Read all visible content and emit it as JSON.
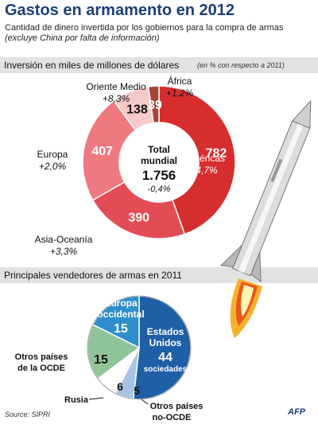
{
  "header": {
    "title": "Gastos en armamento en 2012",
    "subtitle_main": "Cantidad de dinero invertida por los gobiernos para la compra de armas",
    "subtitle_note": "(excluye China por falta de información)"
  },
  "section1": {
    "label": "Inversión en miles de millones de dólares",
    "note": "(en % con respecto a 2011)"
  },
  "section2": {
    "label": "Principales vendedores de armas en 2011"
  },
  "footer": {
    "source": "Source: SIPRI",
    "logo": "AFP"
  },
  "chart_data": [
    {
      "type": "pie",
      "variant": "donut",
      "title": "Inversión en miles de millones de dólares",
      "categories": [
        "Américas",
        "Asia-Oceanía",
        "Europa",
        "Oriente Medio",
        "África"
      ],
      "values": [
        782,
        390,
        407,
        138,
        39
      ],
      "value_labels": [
        "782",
        "390",
        "407",
        "138",
        "39"
      ],
      "changes": [
        "-4,7%",
        "+3,3%",
        "+2,0%",
        "+8,3%",
        "+1,2%"
      ],
      "colors": [
        "#d62e2e",
        "#e24d55",
        "#ee7a80",
        "#f8c9c9",
        "#a64535"
      ],
      "center": {
        "label": "Total mundial",
        "value": "1.756",
        "change": "-0,4%"
      }
    },
    {
      "type": "pie",
      "title": "Principales vendedores de armas en 2011",
      "categories": [
        "Estados Unidos",
        "Otros países no-OCDE",
        "Rusia",
        "Otros países de la OCDE",
        "Europa occidental"
      ],
      "values": [
        44,
        5,
        6,
        15,
        15
      ],
      "label_lines": [
        [
          "Estados",
          "Unidos"
        ],
        [
          "Otros países",
          "no-OCDE"
        ],
        [
          "Rusia"
        ],
        [
          "Otros países",
          "de la OCDE"
        ],
        [
          "Europa",
          "occidental"
        ]
      ],
      "value_labels": [
        "44",
        "5",
        "6",
        "15",
        "15"
      ],
      "unit": "sociedades",
      "colors": [
        "#1f5fa6",
        "#a8c4e4",
        "#ffffff",
        "#8fc498",
        "#2f8fcc"
      ]
    }
  ]
}
